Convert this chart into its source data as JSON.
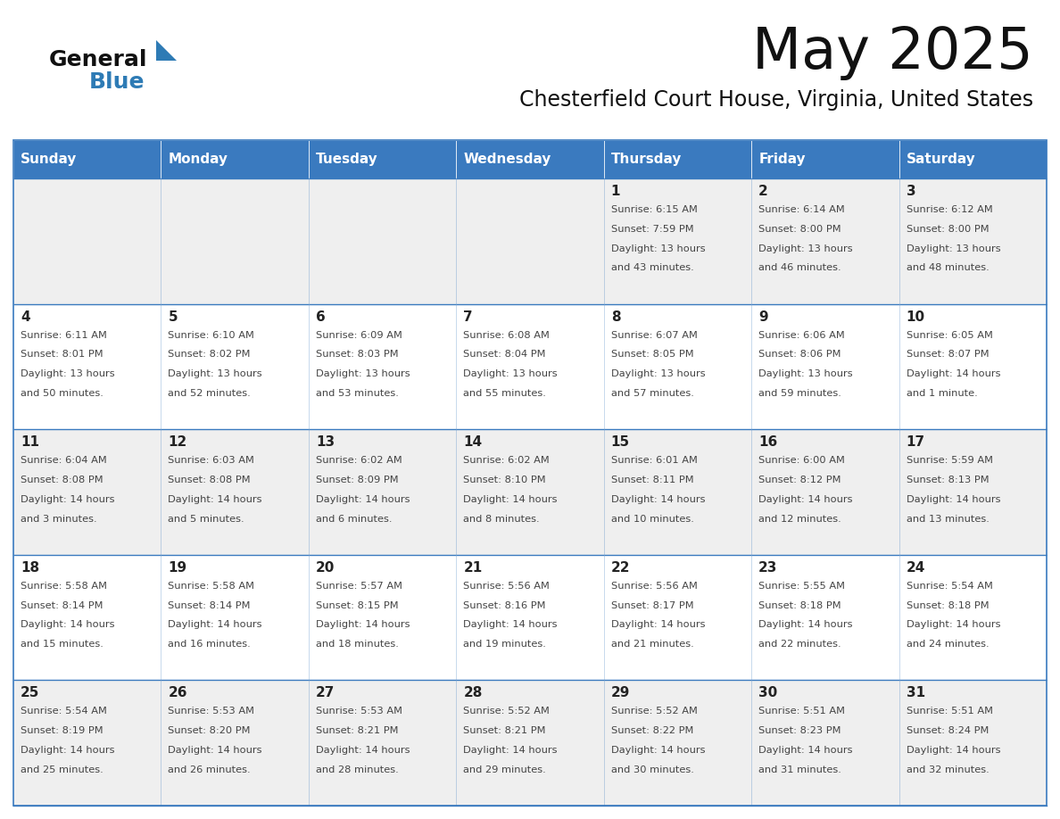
{
  "title": "May 2025",
  "subtitle": "Chesterfield Court House, Virginia, United States",
  "days_of_week": [
    "Sunday",
    "Monday",
    "Tuesday",
    "Wednesday",
    "Thursday",
    "Friday",
    "Saturday"
  ],
  "header_bg": "#3a7abf",
  "header_text": "#FFFFFF",
  "odd_row_bg": "#EFEFEF",
  "even_row_bg": "#FFFFFF",
  "cell_border": "#3a7abf",
  "day_number_color": "#222222",
  "info_text_color": "#444444",
  "title_color": "#111111",
  "subtitle_color": "#111111",
  "logo_general_color": "#111111",
  "logo_blue_color": "#2E7BB5",
  "weeks": [
    [
      {
        "day": 0,
        "info": ""
      },
      {
        "day": 0,
        "info": ""
      },
      {
        "day": 0,
        "info": ""
      },
      {
        "day": 0,
        "info": ""
      },
      {
        "day": 1,
        "info": "Sunrise: 6:15 AM\nSunset: 7:59 PM\nDaylight: 13 hours\nand 43 minutes."
      },
      {
        "day": 2,
        "info": "Sunrise: 6:14 AM\nSunset: 8:00 PM\nDaylight: 13 hours\nand 46 minutes."
      },
      {
        "day": 3,
        "info": "Sunrise: 6:12 AM\nSunset: 8:00 PM\nDaylight: 13 hours\nand 48 minutes."
      }
    ],
    [
      {
        "day": 4,
        "info": "Sunrise: 6:11 AM\nSunset: 8:01 PM\nDaylight: 13 hours\nand 50 minutes."
      },
      {
        "day": 5,
        "info": "Sunrise: 6:10 AM\nSunset: 8:02 PM\nDaylight: 13 hours\nand 52 minutes."
      },
      {
        "day": 6,
        "info": "Sunrise: 6:09 AM\nSunset: 8:03 PM\nDaylight: 13 hours\nand 53 minutes."
      },
      {
        "day": 7,
        "info": "Sunrise: 6:08 AM\nSunset: 8:04 PM\nDaylight: 13 hours\nand 55 minutes."
      },
      {
        "day": 8,
        "info": "Sunrise: 6:07 AM\nSunset: 8:05 PM\nDaylight: 13 hours\nand 57 minutes."
      },
      {
        "day": 9,
        "info": "Sunrise: 6:06 AM\nSunset: 8:06 PM\nDaylight: 13 hours\nand 59 minutes."
      },
      {
        "day": 10,
        "info": "Sunrise: 6:05 AM\nSunset: 8:07 PM\nDaylight: 14 hours\nand 1 minute."
      }
    ],
    [
      {
        "day": 11,
        "info": "Sunrise: 6:04 AM\nSunset: 8:08 PM\nDaylight: 14 hours\nand 3 minutes."
      },
      {
        "day": 12,
        "info": "Sunrise: 6:03 AM\nSunset: 8:08 PM\nDaylight: 14 hours\nand 5 minutes."
      },
      {
        "day": 13,
        "info": "Sunrise: 6:02 AM\nSunset: 8:09 PM\nDaylight: 14 hours\nand 6 minutes."
      },
      {
        "day": 14,
        "info": "Sunrise: 6:02 AM\nSunset: 8:10 PM\nDaylight: 14 hours\nand 8 minutes."
      },
      {
        "day": 15,
        "info": "Sunrise: 6:01 AM\nSunset: 8:11 PM\nDaylight: 14 hours\nand 10 minutes."
      },
      {
        "day": 16,
        "info": "Sunrise: 6:00 AM\nSunset: 8:12 PM\nDaylight: 14 hours\nand 12 minutes."
      },
      {
        "day": 17,
        "info": "Sunrise: 5:59 AM\nSunset: 8:13 PM\nDaylight: 14 hours\nand 13 minutes."
      }
    ],
    [
      {
        "day": 18,
        "info": "Sunrise: 5:58 AM\nSunset: 8:14 PM\nDaylight: 14 hours\nand 15 minutes."
      },
      {
        "day": 19,
        "info": "Sunrise: 5:58 AM\nSunset: 8:14 PM\nDaylight: 14 hours\nand 16 minutes."
      },
      {
        "day": 20,
        "info": "Sunrise: 5:57 AM\nSunset: 8:15 PM\nDaylight: 14 hours\nand 18 minutes."
      },
      {
        "day": 21,
        "info": "Sunrise: 5:56 AM\nSunset: 8:16 PM\nDaylight: 14 hours\nand 19 minutes."
      },
      {
        "day": 22,
        "info": "Sunrise: 5:56 AM\nSunset: 8:17 PM\nDaylight: 14 hours\nand 21 minutes."
      },
      {
        "day": 23,
        "info": "Sunrise: 5:55 AM\nSunset: 8:18 PM\nDaylight: 14 hours\nand 22 minutes."
      },
      {
        "day": 24,
        "info": "Sunrise: 5:54 AM\nSunset: 8:18 PM\nDaylight: 14 hours\nand 24 minutes."
      }
    ],
    [
      {
        "day": 25,
        "info": "Sunrise: 5:54 AM\nSunset: 8:19 PM\nDaylight: 14 hours\nand 25 minutes."
      },
      {
        "day": 26,
        "info": "Sunrise: 5:53 AM\nSunset: 8:20 PM\nDaylight: 14 hours\nand 26 minutes."
      },
      {
        "day": 27,
        "info": "Sunrise: 5:53 AM\nSunset: 8:21 PM\nDaylight: 14 hours\nand 28 minutes."
      },
      {
        "day": 28,
        "info": "Sunrise: 5:52 AM\nSunset: 8:21 PM\nDaylight: 14 hours\nand 29 minutes."
      },
      {
        "day": 29,
        "info": "Sunrise: 5:52 AM\nSunset: 8:22 PM\nDaylight: 14 hours\nand 30 minutes."
      },
      {
        "day": 30,
        "info": "Sunrise: 5:51 AM\nSunset: 8:23 PM\nDaylight: 14 hours\nand 31 minutes."
      },
      {
        "day": 31,
        "info": "Sunrise: 5:51 AM\nSunset: 8:24 PM\nDaylight: 14 hours\nand 32 minutes."
      }
    ]
  ]
}
